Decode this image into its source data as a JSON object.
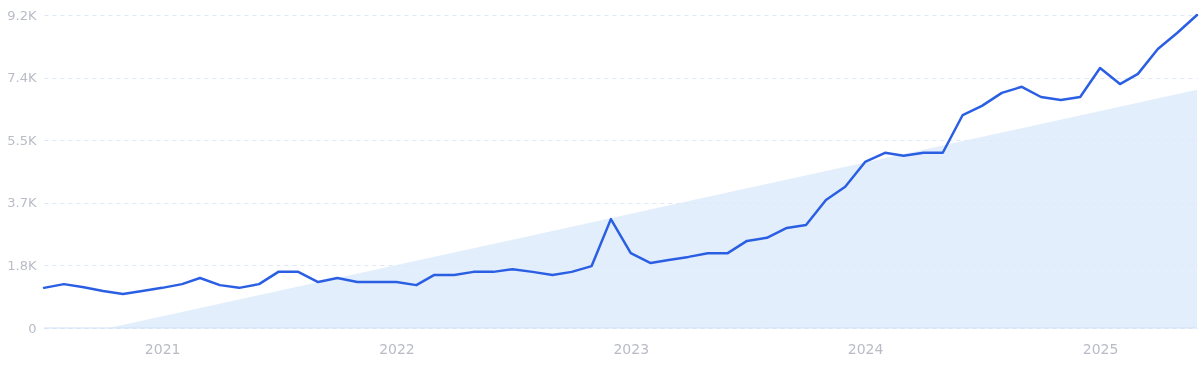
{
  "chart_data": {
    "type": "line",
    "x": [
      "2020-07",
      "2020-08",
      "2020-09",
      "2020-10",
      "2020-11",
      "2020-12",
      "2021-01",
      "2021-02",
      "2021-03",
      "2021-04",
      "2021-05",
      "2021-06",
      "2021-07",
      "2021-08",
      "2021-09",
      "2021-10",
      "2021-11",
      "2021-12",
      "2022-01",
      "2022-02",
      "2022-03",
      "2022-04",
      "2022-05",
      "2022-06",
      "2022-07",
      "2022-08",
      "2022-09",
      "2022-10",
      "2022-11",
      "2022-12",
      "2023-01",
      "2023-02",
      "2023-03",
      "2023-04",
      "2023-05",
      "2023-06",
      "2023-07",
      "2023-08",
      "2023-09",
      "2023-10",
      "2023-11",
      "2023-12",
      "2024-01",
      "2024-02",
      "2024-03",
      "2024-04",
      "2024-05",
      "2024-06",
      "2024-07",
      "2024-08",
      "2024-09",
      "2024-10",
      "2024-11",
      "2024-12",
      "2025-01",
      "2025-02",
      "2025-03",
      "2025-04",
      "2025-05",
      "2025-06"
    ],
    "series": [
      {
        "type": "area",
        "color": "#dceafb",
        "x": [
          "2020-10-10",
          "2025-06"
        ],
        "values": [
          0,
          7000
        ]
      },
      {
        "color": "#2b5fe3",
        "values": [
          1180,
          1290,
          1200,
          1090,
          1000,
          1090,
          1180,
          1290,
          1470,
          1260,
          1180,
          1290,
          1650,
          1650,
          1350,
          1470,
          1350,
          1350,
          1350,
          1260,
          1560,
          1560,
          1650,
          1650,
          1730,
          1650,
          1560,
          1650,
          1820,
          3200,
          2200,
          1910,
          2000,
          2090,
          2200,
          2200,
          2560,
          2650,
          2940,
          3030,
          3760,
          4150,
          4880,
          5150,
          5060,
          5150,
          5150,
          6260,
          6530,
          6910,
          7090,
          6790,
          6700,
          6790,
          7640,
          7170,
          7470,
          8200,
          8670,
          9200
        ]
      }
    ],
    "xlim": [
      "2020-07",
      "2025-06"
    ],
    "xticks": [
      {
        "value": "2021-01",
        "label": "2021"
      },
      {
        "value": "2022-01",
        "label": "2022"
      },
      {
        "value": "2023-01",
        "label": "2023"
      },
      {
        "value": "2024-01",
        "label": "2024"
      },
      {
        "value": "2025-01",
        "label": "2025"
      }
    ],
    "ylim": [
      0,
      9200
    ],
    "yticks": [
      {
        "value": 0,
        "label": "0"
      },
      {
        "value": 1840,
        "label": "1.8K"
      },
      {
        "value": 3680,
        "label": "3.7K"
      },
      {
        "value": 5520,
        "label": "5.5K"
      },
      {
        "value": 7360,
        "label": "7.4K"
      },
      {
        "value": 9200,
        "label": "9.2K"
      }
    ],
    "grid": "y",
    "line_style": "solid"
  }
}
